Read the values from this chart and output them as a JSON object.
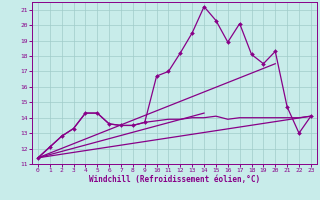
{
  "xlabel": "Windchill (Refroidissement éolien,°C)",
  "xlim": [
    -0.5,
    23.5
  ],
  "ylim": [
    11,
    21.5
  ],
  "xticks": [
    0,
    1,
    2,
    3,
    4,
    5,
    6,
    7,
    8,
    9,
    10,
    11,
    12,
    13,
    14,
    15,
    16,
    17,
    18,
    19,
    20,
    21,
    22,
    23
  ],
  "yticks": [
    11,
    12,
    13,
    14,
    15,
    16,
    17,
    18,
    19,
    20,
    21
  ],
  "bg_color": "#c8ecea",
  "line_color": "#880088",
  "grid_color": "#a0ccca",
  "series": [
    {
      "x": [
        0,
        1,
        2,
        3,
        4,
        5,
        6,
        7,
        8,
        9,
        10,
        11,
        12,
        13,
        14,
        15,
        16,
        17,
        18,
        19,
        20,
        21,
        22,
        23
      ],
      "y": [
        11.4,
        12.1,
        12.8,
        13.3,
        14.3,
        14.3,
        13.6,
        13.5,
        13.5,
        13.7,
        13.8,
        13.9,
        13.9,
        14.0,
        14.0,
        14.1,
        13.9,
        14.0,
        14.0,
        14.0,
        14.0,
        14.0,
        14.0,
        14.1
      ],
      "marker": false,
      "linewidth": 0.9
    },
    {
      "x": [
        0,
        1,
        2,
        3,
        4,
        5,
        6,
        7,
        8,
        9,
        10,
        11,
        12,
        13,
        14,
        15,
        16,
        17,
        18,
        19,
        20,
        21,
        22,
        23
      ],
      "y": [
        11.4,
        12.1,
        12.8,
        13.3,
        14.3,
        14.3,
        13.6,
        13.5,
        13.5,
        13.7,
        16.7,
        17.0,
        18.2,
        19.5,
        21.2,
        20.3,
        18.9,
        20.1,
        18.1,
        17.5,
        18.3,
        14.7,
        13.0,
        14.1
      ],
      "marker": true,
      "linewidth": 0.9
    },
    {
      "x": [
        0,
        23
      ],
      "y": [
        11.4,
        14.1
      ],
      "marker": false,
      "linewidth": 0.9
    },
    {
      "x": [
        0,
        20
      ],
      "y": [
        11.4,
        17.5
      ],
      "marker": false,
      "linewidth": 0.9
    },
    {
      "x": [
        0,
        14
      ],
      "y": [
        11.4,
        14.3
      ],
      "marker": false,
      "linewidth": 0.9
    }
  ]
}
